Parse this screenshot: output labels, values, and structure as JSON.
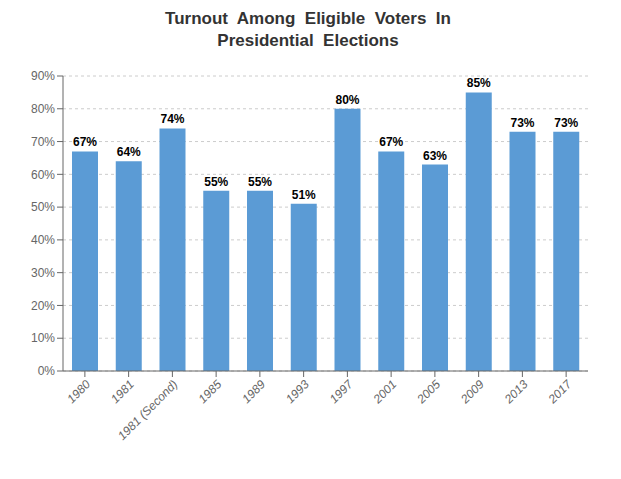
{
  "chart_data": {
    "type": "bar",
    "title": "Turnout  Among  Eligible  Voters  In\nPresidential  Elections",
    "categories": [
      "1980",
      "1981",
      "1981 (Second)",
      "1985",
      "1989",
      "1993",
      "1997",
      "2001",
      "2005",
      "2009",
      "2013",
      "2017"
    ],
    "values": [
      67,
      64,
      74,
      55,
      55,
      51,
      80,
      67,
      63,
      85,
      73,
      73
    ],
    "value_labels": [
      "67%",
      "64%",
      "74%",
      "55%",
      "55%",
      "51%",
      "80%",
      "67%",
      "63%",
      "85%",
      "73%",
      "73%"
    ],
    "color": "#5B9BD5",
    "ylim": [
      0,
      90
    ],
    "yticks": [
      {
        "value": 0,
        "label": "0%"
      },
      {
        "value": 10,
        "label": "10%"
      },
      {
        "value": 20,
        "label": "20%"
      },
      {
        "value": 30,
        "label": "30%"
      },
      {
        "value": 40,
        "label": "40%"
      },
      {
        "value": 50,
        "label": "50%"
      },
      {
        "value": 60,
        "label": "60%"
      },
      {
        "value": 70,
        "label": "70%"
      },
      {
        "value": 80,
        "label": "80%"
      },
      {
        "value": 90,
        "label": "90%"
      }
    ],
    "grid": true,
    "data_labels": true
  }
}
